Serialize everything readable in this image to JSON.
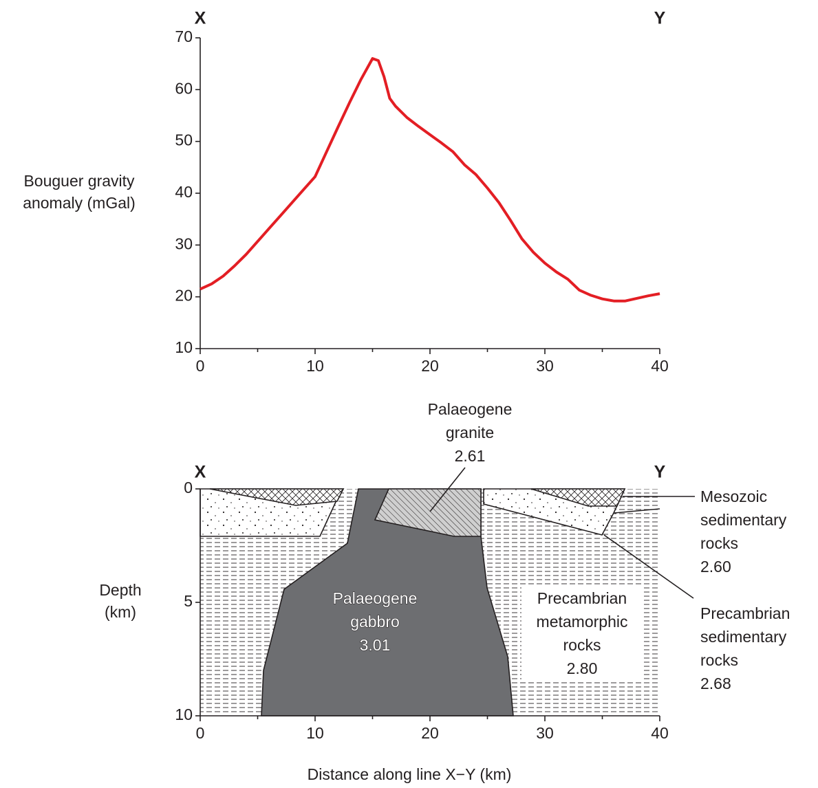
{
  "chart_data": [
    {
      "type": "line",
      "x": [
        0,
        1,
        2,
        3,
        4,
        5,
        6,
        7,
        8,
        9,
        10,
        11,
        12,
        13,
        14,
        15,
        15.5,
        16,
        16.5,
        17,
        18,
        19,
        20,
        21,
        22,
        23,
        24,
        25,
        26,
        27,
        28,
        29,
        30,
        31,
        32,
        33,
        34,
        35,
        36,
        37,
        38,
        39,
        40
      ],
      "values": [
        21.5,
        22.5,
        24,
        26,
        28.2,
        30.7,
        33.2,
        35.7,
        38.2,
        40.7,
        43.2,
        48,
        52.8,
        57.5,
        62,
        66,
        65.6,
        62.5,
        58.3,
        56.8,
        54.6,
        52.9,
        51.3,
        49.7,
        48,
        45.5,
        43.6,
        41,
        38.2,
        34.8,
        31.2,
        28.6,
        26.5,
        24.8,
        23.4,
        21.3,
        20.3,
        19.6,
        19.2,
        19.2,
        19.7,
        20.2,
        20.6
      ],
      "color": "#e31e24",
      "xlim": [
        0,
        40
      ],
      "ylim": [
        10,
        70
      ],
      "xticks": [
        0,
        10,
        20,
        30,
        40
      ],
      "xminorticks": [
        5,
        15,
        25,
        35
      ],
      "yticks": [
        10,
        20,
        30,
        40,
        50,
        60,
        70
      ],
      "ylabel": [
        "Bouguer gravity",
        "anomaly (mGal)"
      ],
      "end_labels": [
        "X",
        "Y"
      ]
    },
    {
      "type": "cross-section",
      "xlim": [
        0,
        40
      ],
      "ylim": [
        0,
        10
      ],
      "y_inverted": true,
      "xticks": [
        0,
        10,
        20,
        30,
        40
      ],
      "xminorticks": [
        5,
        15,
        25,
        35
      ],
      "yticks": [
        0,
        5,
        10
      ],
      "ylabel": [
        "Depth",
        "(km)"
      ],
      "xlabel": "Distance along line X−Y (km)",
      "end_labels": [
        "X",
        "Y"
      ],
      "units": [
        {
          "lines": [
            "Palaeogene",
            "granite",
            "2.61"
          ]
        },
        {
          "lines": [
            "Palaeogene",
            "gabbro",
            "3.01"
          ]
        },
        {
          "lines": [
            "Precambrian",
            "metamorphic",
            "rocks",
            "2.80"
          ]
        },
        {
          "lines": [
            "Mesozoic",
            "sedimentary",
            "rocks",
            "2.60"
          ]
        },
        {
          "lines": [
            "Precambrian",
            "sedimentary",
            "rocks",
            "2.68"
          ]
        }
      ]
    }
  ]
}
